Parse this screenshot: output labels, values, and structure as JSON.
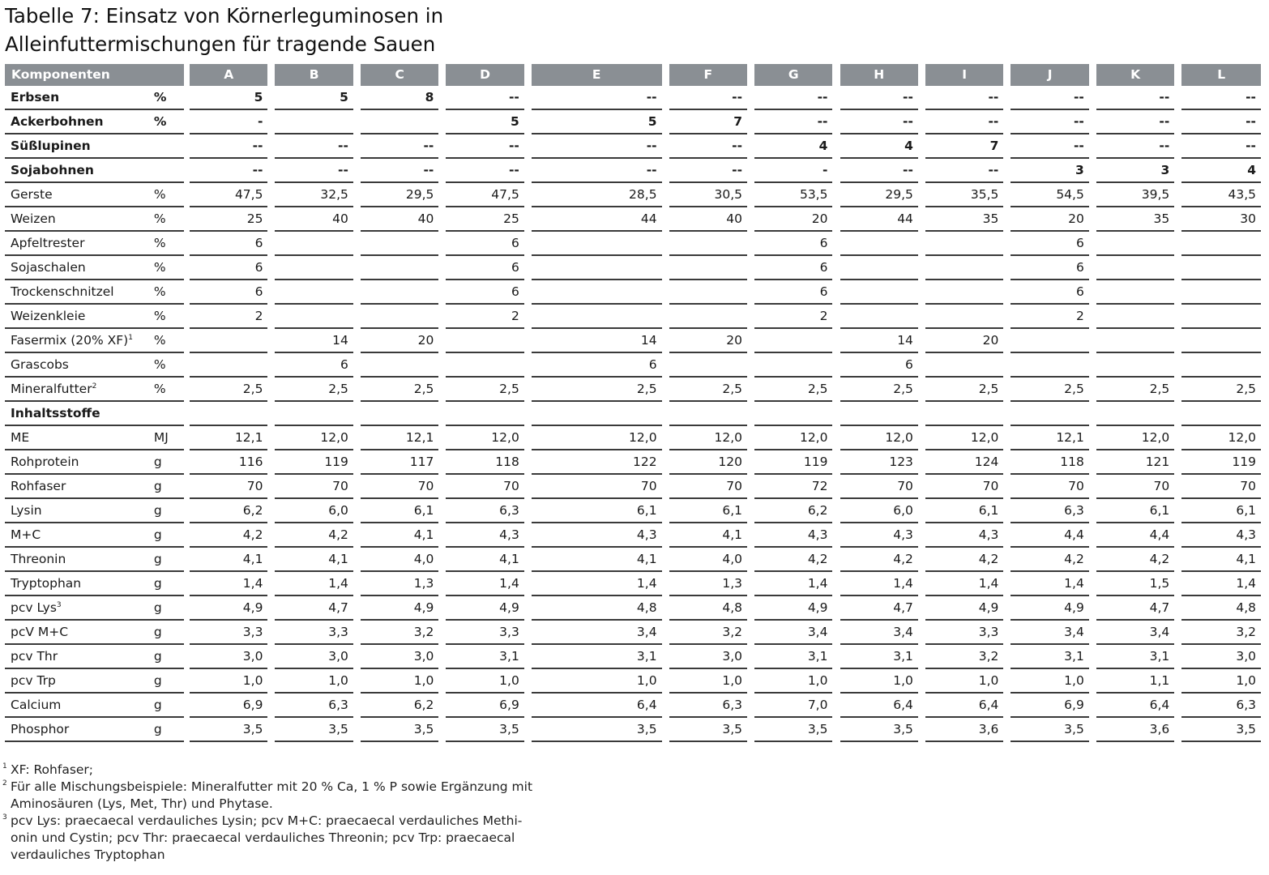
{
  "title": {
    "line1": "Tabelle 7: Einsatz von Körnerleguminosen in",
    "line2": "Alleinfuttermischungen für tragende Sauen"
  },
  "header": {
    "first": "Komponenten",
    "cols": [
      "A",
      "B",
      "C",
      "D",
      "E",
      "F",
      "G",
      "H",
      "I",
      "J",
      "K",
      "L"
    ]
  },
  "rows_components": [
    {
      "label": "Erbsen",
      "unit": "%",
      "bold": true,
      "values": [
        "5",
        "5",
        "8",
        "--",
        "--",
        "--",
        "--",
        "--",
        "--",
        "--",
        "--",
        "--"
      ]
    },
    {
      "label": "Ackerbohnen",
      "unit": "%",
      "bold": true,
      "values": [
        "-",
        "",
        "",
        "5",
        "5",
        "7",
        "--",
        "--",
        "--",
        "--",
        "--",
        "--"
      ]
    },
    {
      "label": "Süßlupinen",
      "unit": "",
      "bold": true,
      "values": [
        "--",
        "--",
        "--",
        "--",
        "--",
        "--",
        "4",
        "4",
        "7",
        "--",
        "--",
        "--"
      ]
    },
    {
      "label": "Sojabohnen",
      "unit": "",
      "bold": true,
      "values": [
        "--",
        "--",
        "--",
        "--",
        "--",
        "--",
        "-",
        "--",
        "--",
        "3",
        "3",
        "4"
      ]
    },
    {
      "label": "Gerste",
      "unit": "%",
      "values": [
        "47,5",
        "32,5",
        "29,5",
        "47,5",
        "28,5",
        "30,5",
        "53,5",
        "29,5",
        "35,5",
        "54,5",
        "39,5",
        "43,5"
      ]
    },
    {
      "label": "Weizen",
      "unit": "%",
      "values": [
        "25",
        "40",
        "40",
        "25",
        "44",
        "40",
        "20",
        "44",
        "35",
        "20",
        "35",
        "30"
      ]
    },
    {
      "label": "Apfeltrester",
      "unit": "%",
      "values": [
        "6",
        "",
        "",
        "6",
        "",
        "",
        "6",
        "",
        "",
        "6",
        "",
        ""
      ]
    },
    {
      "label": "Sojaschalen",
      "unit": "%",
      "values": [
        "6",
        "",
        "",
        "6",
        "",
        "",
        "6",
        "",
        "",
        "6",
        "",
        ""
      ]
    },
    {
      "label": "Trockenschnitzel",
      "unit": "%",
      "values": [
        "6",
        "",
        "",
        "6",
        "",
        "",
        "6",
        "",
        "",
        "6",
        "",
        ""
      ]
    },
    {
      "label": "Weizenkleie",
      "unit": "%",
      "values": [
        "2",
        "",
        "",
        "2",
        "",
        "",
        "2",
        "",
        "",
        "2",
        "",
        ""
      ]
    },
    {
      "label": "Fasermix (20% XF)",
      "sup": "1",
      "unit": "%",
      "values": [
        "",
        "14",
        "20",
        "",
        "14",
        "20",
        "",
        "14",
        "20",
        "",
        "",
        ""
      ]
    },
    {
      "label": "Grascobs",
      "unit": "%",
      "values": [
        "",
        "6",
        "",
        "",
        "6",
        "",
        "",
        "6",
        "",
        "",
        "",
        ""
      ]
    },
    {
      "label": "Mineralfutter",
      "sup": "2",
      "unit": "%",
      "values": [
        "2,5",
        "2,5",
        "2,5",
        "2,5",
        "2,5",
        "2,5",
        "2,5",
        "2,5",
        "2,5",
        "2,5",
        "2,5",
        "2,5"
      ]
    }
  ],
  "section_label": "Inhaltsstoffe",
  "rows_contents": [
    {
      "label": "ME",
      "unit": "MJ",
      "values": [
        "12,1",
        "12,0",
        "12,1",
        "12,0",
        "12,0",
        "12,0",
        "12,0",
        "12,0",
        "12,0",
        "12,1",
        "12,0",
        "12,0"
      ]
    },
    {
      "label": "Rohprotein",
      "unit": "g",
      "values": [
        "116",
        "119",
        "117",
        "118",
        "122",
        "120",
        "119",
        "123",
        "124",
        "118",
        "121",
        "119"
      ]
    },
    {
      "label": "Rohfaser",
      "unit": "g",
      "values": [
        "70",
        "70",
        "70",
        "70",
        "70",
        "70",
        "72",
        "70",
        "70",
        "70",
        "70",
        "70"
      ]
    },
    {
      "label": "Lysin",
      "unit": "g",
      "values": [
        "6,2",
        "6,0",
        "6,1",
        "6,3",
        "6,1",
        "6,1",
        "6,2",
        "6,0",
        "6,1",
        "6,3",
        "6,1",
        "6,1"
      ]
    },
    {
      "label": "M+C",
      "unit": "g",
      "values": [
        "4,2",
        "4,2",
        "4,1",
        "4,3",
        "4,3",
        "4,1",
        "4,3",
        "4,3",
        "4,3",
        "4,4",
        "4,4",
        "4,3"
      ]
    },
    {
      "label": "Threonin",
      "unit": "g",
      "values": [
        "4,1",
        "4,1",
        "4,0",
        "4,1",
        "4,1",
        "4,0",
        "4,2",
        "4,2",
        "4,2",
        "4,2",
        "4,2",
        "4,1"
      ]
    },
    {
      "label": "Tryptophan",
      "unit": "g",
      "values": [
        "1,4",
        "1,4",
        "1,3",
        "1,4",
        "1,4",
        "1,3",
        "1,4",
        "1,4",
        "1,4",
        "1,4",
        "1,5",
        "1,4"
      ]
    },
    {
      "label": "pcv Lys",
      "sup": "3",
      "unit": "g",
      "values": [
        "4,9",
        "4,7",
        "4,9",
        "4,9",
        "4,8",
        "4,8",
        "4,9",
        "4,7",
        "4,9",
        "4,9",
        "4,7",
        "4,8"
      ]
    },
    {
      "label": "pcV M+C",
      "unit": "g",
      "values": [
        "3,3",
        "3,3",
        "3,2",
        "3,3",
        "3,4",
        "3,2",
        "3,4",
        "3,4",
        "3,3",
        "3,4",
        "3,4",
        "3,2"
      ]
    },
    {
      "label": "pcv Thr",
      "unit": "g",
      "values": [
        "3,0",
        "3,0",
        "3,0",
        "3,1",
        "3,1",
        "3,0",
        "3,1",
        "3,1",
        "3,2",
        "3,1",
        "3,1",
        "3,0"
      ]
    },
    {
      "label": "pcv Trp",
      "unit": "g",
      "values": [
        "1,0",
        "1,0",
        "1,0",
        "1,0",
        "1,0",
        "1,0",
        "1,0",
        "1,0",
        "1,0",
        "1,0",
        "1,1",
        "1,0"
      ]
    },
    {
      "label": "Calcium",
      "unit": "g",
      "values": [
        "6,9",
        "6,3",
        "6,2",
        "6,9",
        "6,4",
        "6,3",
        "7,0",
        "6,4",
        "6,4",
        "6,9",
        "6,4",
        "6,3"
      ]
    },
    {
      "label": "Phosphor",
      "unit": "g",
      "values": [
        "3,5",
        "3,5",
        "3,5",
        "3,5",
        "3,5",
        "3,5",
        "3,5",
        "3,5",
        "3,6",
        "3,5",
        "3,6",
        "3,5"
      ]
    }
  ],
  "footnotes": [
    {
      "mark": "1",
      "lines": [
        "XF: Rohfaser;"
      ]
    },
    {
      "mark": "2",
      "lines": [
        "Für alle Mischungsbeispiele: Mineralfutter mit 20 % Ca, 1 % P sowie Ergänzung mit",
        "Aminosäuren (Lys, Met, Thr) und Phytase."
      ]
    },
    {
      "mark": "3",
      "lines": [
        "pcv Lys: praecaecal verdauliches Lysin; pcv M+C: praecaecal verdauliches Methi-",
        "onin und Cystin; pcv Thr: praecaecal verdauliches Threonin; pcv Trp: praecaecal",
        "verdauliches Tryptophan"
      ]
    }
  ],
  "colors": {
    "header_bg": "#8a8f94",
    "header_text": "#ffffff",
    "rule": "#3a3a3a"
  }
}
